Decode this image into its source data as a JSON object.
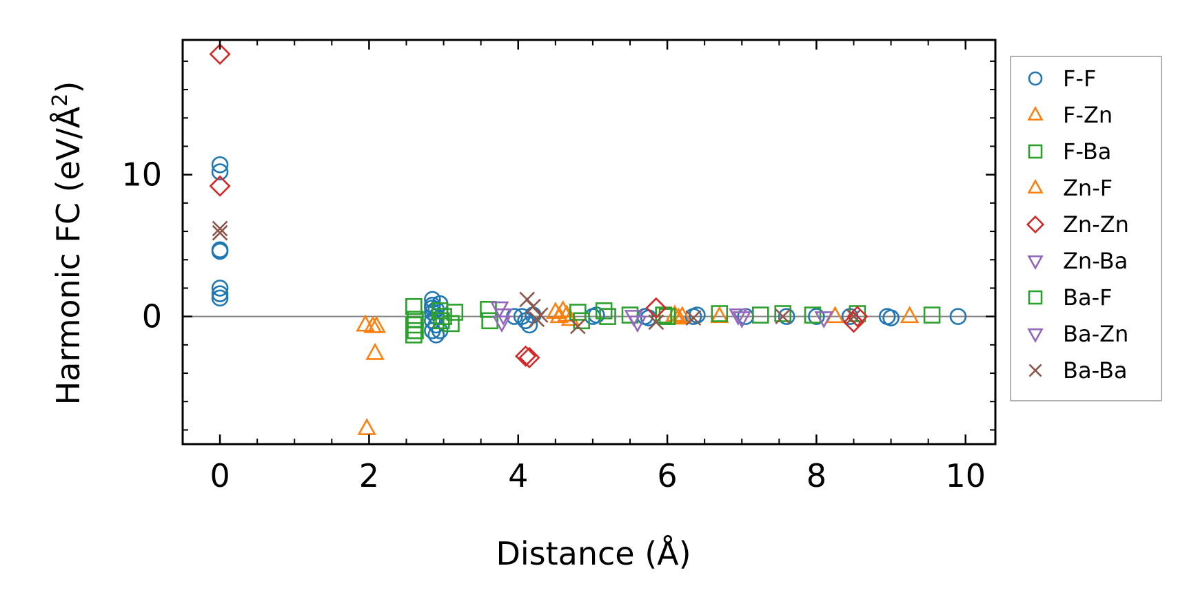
{
  "chart_data": {
    "type": "scatter",
    "xlabel": "Distance (Å)",
    "ylabel_main": "Harmonic FC (eV/Å",
    "ylabel_sup": "2",
    "ylabel_close": ")",
    "xlim": [
      -0.5,
      10.4
    ],
    "ylim": [
      -9.0,
      19.5
    ],
    "xticks": [
      0,
      2,
      4,
      6,
      8,
      10
    ],
    "xtick_labels": [
      "0",
      "2",
      "4",
      "6",
      "8",
      "10"
    ],
    "yticks": [
      0,
      10
    ],
    "ytick_labels": [
      "0",
      "10"
    ],
    "zero_line": true,
    "legend_position": "right",
    "series": [
      {
        "name": "F-F",
        "marker": "circle",
        "color": "#1f77b4",
        "points": [
          [
            0,
            10.7
          ],
          [
            0,
            10.2
          ],
          [
            0,
            4.7
          ],
          [
            0,
            4.6
          ],
          [
            0,
            2.0
          ],
          [
            0,
            1.6
          ],
          [
            0,
            1.3
          ],
          [
            2.85,
            1.2
          ],
          [
            2.85,
            0.8
          ],
          [
            2.9,
            0.5
          ],
          [
            2.95,
            0.9
          ],
          [
            2.85,
            0.3
          ],
          [
            2.9,
            0.0
          ],
          [
            2.85,
            -0.3
          ],
          [
            2.9,
            -0.6
          ],
          [
            2.85,
            -1.0
          ],
          [
            2.9,
            -1.3
          ],
          [
            2.95,
            -1.0
          ],
          [
            2.85,
            0.6
          ],
          [
            3.95,
            0.0
          ],
          [
            4.05,
            0.0
          ],
          [
            4.1,
            -0.3
          ],
          [
            4.15,
            -0.6
          ],
          [
            4.2,
            0.1
          ],
          [
            5.0,
            0.0
          ],
          [
            5.05,
            0.1
          ],
          [
            5.7,
            0.0
          ],
          [
            5.75,
            -0.1
          ],
          [
            6.35,
            0.0
          ],
          [
            6.4,
            0.1
          ],
          [
            7.05,
            0.0
          ],
          [
            7.6,
            0.0
          ],
          [
            8.0,
            0.0
          ],
          [
            8.45,
            0.0
          ],
          [
            8.95,
            0.0
          ],
          [
            9.0,
            -0.1
          ],
          [
            9.9,
            0.0
          ]
        ]
      },
      {
        "name": "F-Zn",
        "marker": "triangle-up",
        "color": "#ff7f0e",
        "points": [
          [
            1.95,
            -0.6
          ],
          [
            2.05,
            -0.7
          ],
          [
            2.1,
            -0.7
          ],
          [
            2.08,
            -2.6
          ],
          [
            1.97,
            -7.9
          ],
          [
            4.5,
            0.3
          ],
          [
            4.55,
            0.0
          ],
          [
            4.6,
            0.4
          ],
          [
            4.65,
            0.1
          ],
          [
            4.7,
            -0.2
          ],
          [
            6.1,
            0.1
          ],
          [
            6.15,
            -0.1
          ],
          [
            6.2,
            0.0
          ],
          [
            6.7,
            0.0
          ],
          [
            8.25,
            0.0
          ],
          [
            9.25,
            0.0
          ]
        ]
      },
      {
        "name": "F-Ba",
        "marker": "square",
        "color": "#2ca02c",
        "points": [
          [
            2.6,
            0.7
          ],
          [
            2.62,
            -0.2
          ],
          [
            2.6,
            -0.6
          ],
          [
            2.62,
            -1.0
          ],
          [
            2.6,
            -1.3
          ],
          [
            2.95,
            0.4
          ],
          [
            3.0,
            0.0
          ],
          [
            2.97,
            -0.3
          ],
          [
            3.15,
            0.3
          ],
          [
            3.1,
            -0.5
          ],
          [
            3.6,
            0.5
          ],
          [
            3.62,
            -0.3
          ],
          [
            4.8,
            0.3
          ],
          [
            4.85,
            -0.3
          ],
          [
            5.15,
            0.4
          ],
          [
            5.2,
            0.0
          ],
          [
            5.5,
            0.1
          ],
          [
            5.95,
            0.1
          ],
          [
            6.0,
            0.0
          ],
          [
            6.7,
            0.2
          ],
          [
            7.25,
            0.1
          ],
          [
            7.55,
            0.2
          ],
          [
            7.95,
            0.1
          ],
          [
            8.55,
            0.2
          ],
          [
            9.55,
            0.1
          ]
        ]
      },
      {
        "name": "Zn-F",
        "marker": "triangle-up",
        "color": "#ff7f0e",
        "points": []
      },
      {
        "name": "Zn-Zn",
        "marker": "diamond",
        "color": "#d62728",
        "points": [
          [
            0,
            18.5
          ],
          [
            0,
            9.2
          ],
          [
            4.1,
            -2.8
          ],
          [
            4.15,
            -2.9
          ],
          [
            5.85,
            0.6
          ],
          [
            8.5,
            -0.4
          ],
          [
            8.55,
            0.0
          ]
        ]
      },
      {
        "name": "Zn-Ba",
        "marker": "triangle-down",
        "color": "#9467bd",
        "points": [
          [
            3.75,
            0.6
          ],
          [
            3.8,
            0.1
          ],
          [
            3.78,
            -0.4
          ],
          [
            5.55,
            0.0
          ],
          [
            5.6,
            -0.4
          ],
          [
            6.95,
            0.1
          ],
          [
            7.0,
            -0.1
          ],
          [
            8.1,
            -0.1
          ]
        ]
      },
      {
        "name": "Ba-F",
        "marker": "square",
        "color": "#2ca02c",
        "points": []
      },
      {
        "name": "Ba-Zn",
        "marker": "triangle-down",
        "color": "#9467bd",
        "points": []
      },
      {
        "name": "Ba-Ba",
        "marker": "x",
        "color": "#8c564b",
        "points": [
          [
            0,
            6.2
          ],
          [
            0,
            5.9
          ],
          [
            4.12,
            1.2
          ],
          [
            4.2,
            0.7
          ],
          [
            4.3,
            0.1
          ],
          [
            4.25,
            -0.2
          ],
          [
            4.8,
            -0.7
          ],
          [
            5.85,
            -0.4
          ],
          [
            6.35,
            -0.1
          ],
          [
            7.55,
            0.0
          ],
          [
            8.5,
            0.0
          ]
        ]
      }
    ]
  }
}
